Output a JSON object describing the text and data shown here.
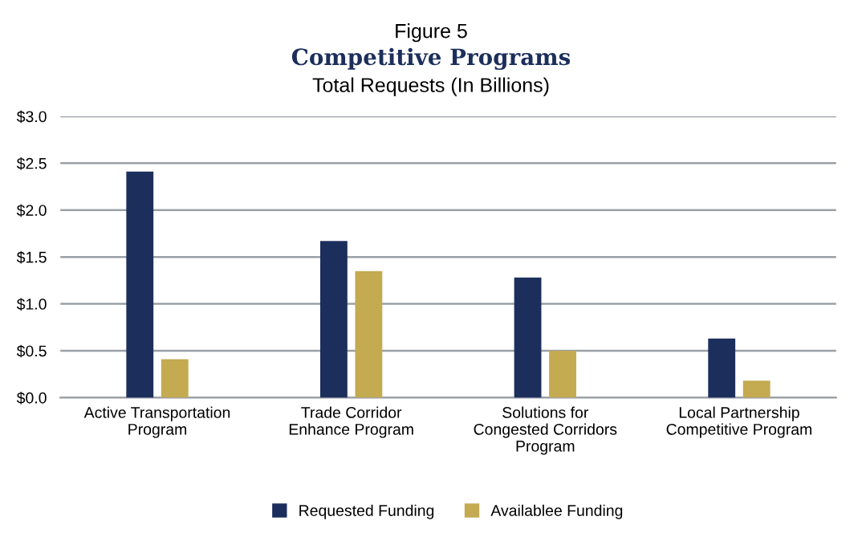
{
  "chart_data": {
    "type": "bar",
    "title": "Competitive Programs",
    "subtitle": "Total Requests (In Billions)",
    "annotations": [
      "Figure 5"
    ],
    "categories": [
      "Active Transportation\nProgram",
      "Trade Corridor\nEnhance Program",
      "Solutions for\nCongested Corridors\nProgram",
      "Local Partnership\nCompetitive Program"
    ],
    "series": [
      {
        "name": "Requested Funding",
        "color": "#1c2f5c",
        "values": [
          2.41,
          1.67,
          1.28,
          0.63
        ]
      },
      {
        "name": "Availablee Funding",
        "color": "#c4aa50",
        "values": [
          0.41,
          1.35,
          0.5,
          0.18
        ]
      }
    ],
    "ylim": [
      0,
      3.0
    ],
    "yticks": [
      {
        "value": 0,
        "label": "$0.0"
      },
      {
        "value": 0.5,
        "label": "$0.5"
      },
      {
        "value": 1.0,
        "label": "$1.0"
      },
      {
        "value": 1.5,
        "label": "$1.5"
      },
      {
        "value": 2.0,
        "label": "$2.0"
      },
      {
        "value": 2.5,
        "label": "$2.5"
      },
      {
        "value": 3.0,
        "label": "$3.0"
      }
    ],
    "grid": "y",
    "legend": "bottom"
  }
}
